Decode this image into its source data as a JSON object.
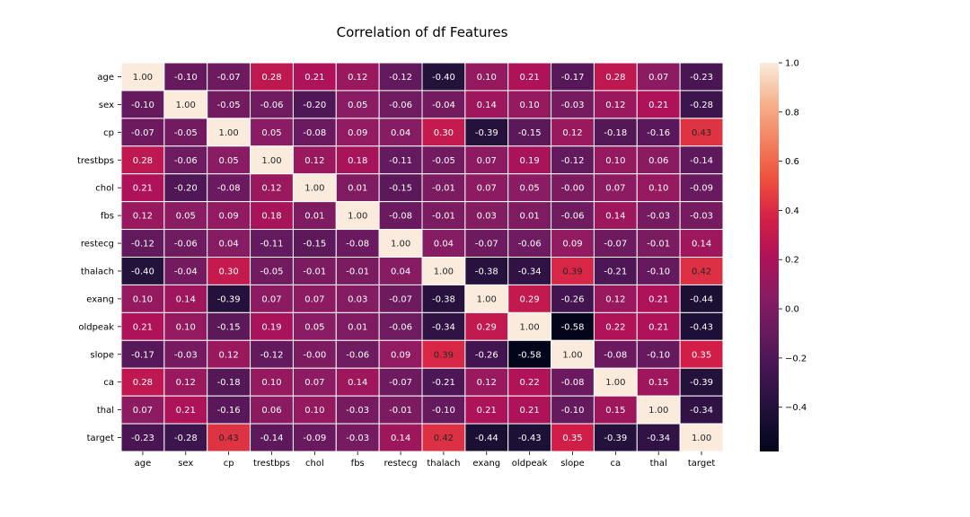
{
  "chart_data": {
    "type": "heatmap",
    "title": "Correlation of df Features",
    "xlabel": "",
    "ylabel": "",
    "labels": [
      "age",
      "sex",
      "cp",
      "trestbps",
      "chol",
      "fbs",
      "restecg",
      "thalach",
      "exang",
      "oldpeak",
      "slope",
      "ca",
      "thal",
      "target"
    ],
    "matrix": [
      [
        "1.00",
        "-0.10",
        "-0.07",
        "0.28",
        "0.21",
        "0.12",
        "-0.12",
        "-0.40",
        "0.10",
        "0.21",
        "-0.17",
        "0.28",
        "0.07",
        "-0.23"
      ],
      [
        "-0.10",
        "1.00",
        "-0.05",
        "-0.06",
        "-0.20",
        "0.05",
        "-0.06",
        "-0.04",
        "0.14",
        "0.10",
        "-0.03",
        "0.12",
        "0.21",
        "-0.28"
      ],
      [
        "-0.07",
        "-0.05",
        "1.00",
        "0.05",
        "-0.08",
        "0.09",
        "0.04",
        "0.30",
        "-0.39",
        "-0.15",
        "0.12",
        "-0.18",
        "-0.16",
        "0.43"
      ],
      [
        "0.28",
        "-0.06",
        "0.05",
        "1.00",
        "0.12",
        "0.18",
        "-0.11",
        "-0.05",
        "0.07",
        "0.19",
        "-0.12",
        "0.10",
        "0.06",
        "-0.14"
      ],
      [
        "0.21",
        "-0.20",
        "-0.08",
        "0.12",
        "1.00",
        "0.01",
        "-0.15",
        "-0.01",
        "0.07",
        "0.05",
        "-0.00",
        "0.07",
        "0.10",
        "-0.09"
      ],
      [
        "0.12",
        "0.05",
        "0.09",
        "0.18",
        "0.01",
        "1.00",
        "-0.08",
        "-0.01",
        "0.03",
        "0.01",
        "-0.06",
        "0.14",
        "-0.03",
        "-0.03"
      ],
      [
        "-0.12",
        "-0.06",
        "0.04",
        "-0.11",
        "-0.15",
        "-0.08",
        "1.00",
        "0.04",
        "-0.07",
        "-0.06",
        "0.09",
        "-0.07",
        "-0.01",
        "0.14"
      ],
      [
        "-0.40",
        "-0.04",
        "0.30",
        "-0.05",
        "-0.01",
        "-0.01",
        "0.04",
        "1.00",
        "-0.38",
        "-0.34",
        "0.39",
        "-0.21",
        "-0.10",
        "0.42"
      ],
      [
        "0.10",
        "0.14",
        "-0.39",
        "0.07",
        "0.07",
        "0.03",
        "-0.07",
        "-0.38",
        "1.00",
        "0.29",
        "-0.26",
        "0.12",
        "0.21",
        "-0.44"
      ],
      [
        "0.21",
        "0.10",
        "-0.15",
        "0.19",
        "0.05",
        "0.01",
        "-0.06",
        "-0.34",
        "0.29",
        "1.00",
        "-0.58",
        "0.22",
        "0.21",
        "-0.43"
      ],
      [
        "-0.17",
        "-0.03",
        "0.12",
        "-0.12",
        "-0.00",
        "-0.06",
        "0.09",
        "0.39",
        "-0.26",
        "-0.58",
        "1.00",
        "-0.08",
        "-0.10",
        "0.35"
      ],
      [
        "0.28",
        "0.12",
        "-0.18",
        "0.10",
        "0.07",
        "0.14",
        "-0.07",
        "-0.21",
        "0.12",
        "0.22",
        "-0.08",
        "1.00",
        "0.15",
        "-0.39"
      ],
      [
        "0.07",
        "0.21",
        "-0.16",
        "0.06",
        "0.10",
        "-0.03",
        "-0.01",
        "-0.10",
        "0.21",
        "0.21",
        "-0.10",
        "0.15",
        "1.00",
        "-0.34"
      ],
      [
        "-0.23",
        "-0.28",
        "0.43",
        "-0.14",
        "-0.09",
        "-0.03",
        "0.14",
        "0.42",
        "-0.44",
        "-0.43",
        "0.35",
        "-0.39",
        "-0.34",
        "1.00"
      ]
    ],
    "vmin": -0.58,
    "vmax": 1.0,
    "colormap": "rocket",
    "colorbar_ticks": [
      "1.0",
      "0.8",
      "0.6",
      "0.4",
      "0.2",
      "0.0",
      "−0.2",
      "−0.4"
    ],
    "grid_line_color": "#ffffff",
    "legend_placement": "right"
  }
}
